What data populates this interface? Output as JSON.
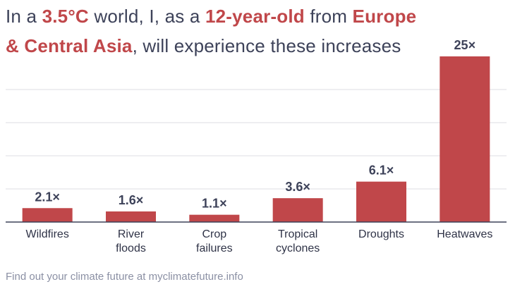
{
  "title": {
    "part1": "In a ",
    "highlight1": "3.5°C",
    "part2": " world, I, as a ",
    "highlight2": "12-year-old",
    "part3": " from ",
    "highlight3": "Europe & Central Asia",
    "part4": ", will experience these increases"
  },
  "footer": "Find out your climate future at myclimatefuture.info",
  "colors": {
    "bar": "#c0474a",
    "text": "#3d4259",
    "grid": "#dcdde3",
    "footer": "#8b90a4"
  },
  "chart_data": {
    "type": "bar",
    "categories": [
      [
        "Wildfires"
      ],
      [
        "River",
        "floods"
      ],
      [
        "Crop",
        "failures"
      ],
      [
        "Tropical",
        "cyclones"
      ],
      [
        "Droughts"
      ],
      [
        "Heatwaves"
      ]
    ],
    "values": [
      2.1,
      1.6,
      1.1,
      3.6,
      6.1,
      25
    ],
    "labels": [
      "2.1×",
      "1.6×",
      "1.1×",
      "3.6×",
      "6.1×",
      "25×"
    ],
    "ylim": [
      0,
      25
    ],
    "grid": true
  }
}
